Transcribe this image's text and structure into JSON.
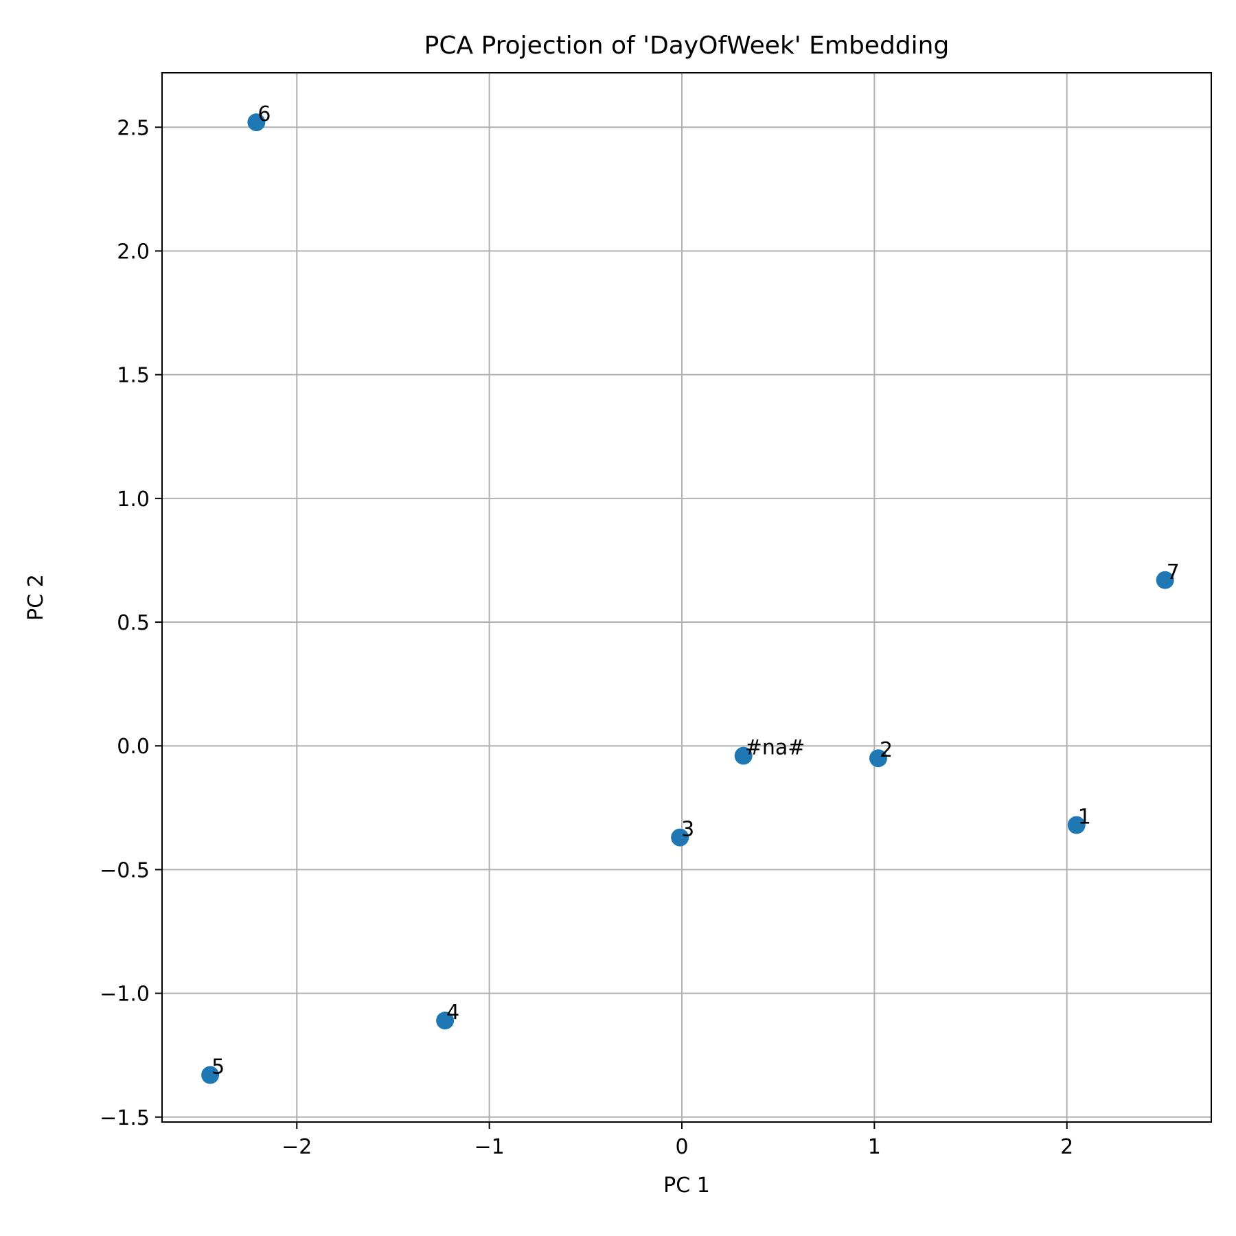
{
  "chart_data": {
    "type": "scatter",
    "title": "PCA Projection of 'DayOfWeek' Embedding",
    "xlabel": "PC 1",
    "ylabel": "PC 2",
    "xlim": [
      -2.7,
      2.75
    ],
    "ylim": [
      -1.52,
      2.72
    ],
    "xticks": [
      -2,
      -1,
      0,
      1,
      2
    ],
    "xtick_labels": [
      "−2",
      "−1",
      "0",
      "1",
      "2"
    ],
    "yticks": [
      -1.5,
      -1.0,
      -0.5,
      0.0,
      0.5,
      1.0,
      1.5,
      2.0,
      2.5
    ],
    "ytick_labels": [
      "−1.5",
      "−1.0",
      "−0.5",
      "0.0",
      "0.5",
      "1.0",
      "1.5",
      "2.0",
      "2.5"
    ],
    "grid": true,
    "marker_color": "#1f77b4",
    "points": [
      {
        "label": "6",
        "x": -2.21,
        "y": 2.52
      },
      {
        "label": "7",
        "x": 2.51,
        "y": 0.67
      },
      {
        "label": "#na#",
        "x": 0.32,
        "y": -0.04
      },
      {
        "label": "2",
        "x": 1.02,
        "y": -0.05
      },
      {
        "label": "1",
        "x": 2.05,
        "y": -0.32
      },
      {
        "label": "3",
        "x": -0.01,
        "y": -0.37
      },
      {
        "label": "4",
        "x": -1.23,
        "y": -1.11
      },
      {
        "label": "5",
        "x": -2.45,
        "y": -1.33
      }
    ]
  }
}
